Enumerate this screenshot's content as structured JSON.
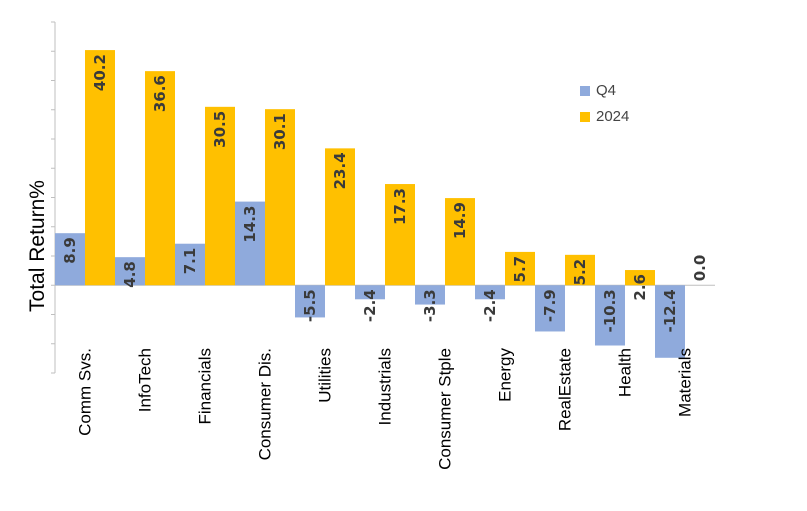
{
  "chart_data": {
    "type": "bar",
    "ylabel": "Total Return%",
    "categories": [
      "Comm Svs.",
      "InfoTech",
      "Financials",
      "Consumer Dis.",
      "Utilities",
      "Industrials",
      "Consumer Stple",
      "Energy",
      "RealEstate",
      "Health",
      "Materials"
    ],
    "series": [
      {
        "name": "Q4",
        "color": "#8FAADC",
        "values": [
          8.9,
          4.8,
          7.1,
          14.3,
          -5.5,
          -2.4,
          -3.3,
          -2.4,
          -7.9,
          -10.3,
          -12.4
        ],
        "labels": [
          "8.9",
          "4.8",
          "7.1",
          "14.3",
          "-5.5",
          "-2.4",
          "-3.3",
          "-2.4",
          "-7.9",
          "-10.3",
          "-12.4"
        ]
      },
      {
        "name": "2024",
        "color": "#FFC000",
        "values": [
          40.2,
          36.6,
          30.5,
          30.1,
          23.4,
          17.3,
          14.9,
          5.7,
          5.2,
          2.6,
          0.0
        ],
        "labels": [
          "40.2",
          "36.6",
          "30.5",
          "30.1",
          "23.4",
          "17.3",
          "14.9",
          "5.7",
          "5.2",
          "2.6",
          "0.0"
        ]
      }
    ],
    "ylim": [
      -15,
      45
    ],
    "y_tick_step": 5,
    "grid": false,
    "legend_position": "top-right"
  }
}
